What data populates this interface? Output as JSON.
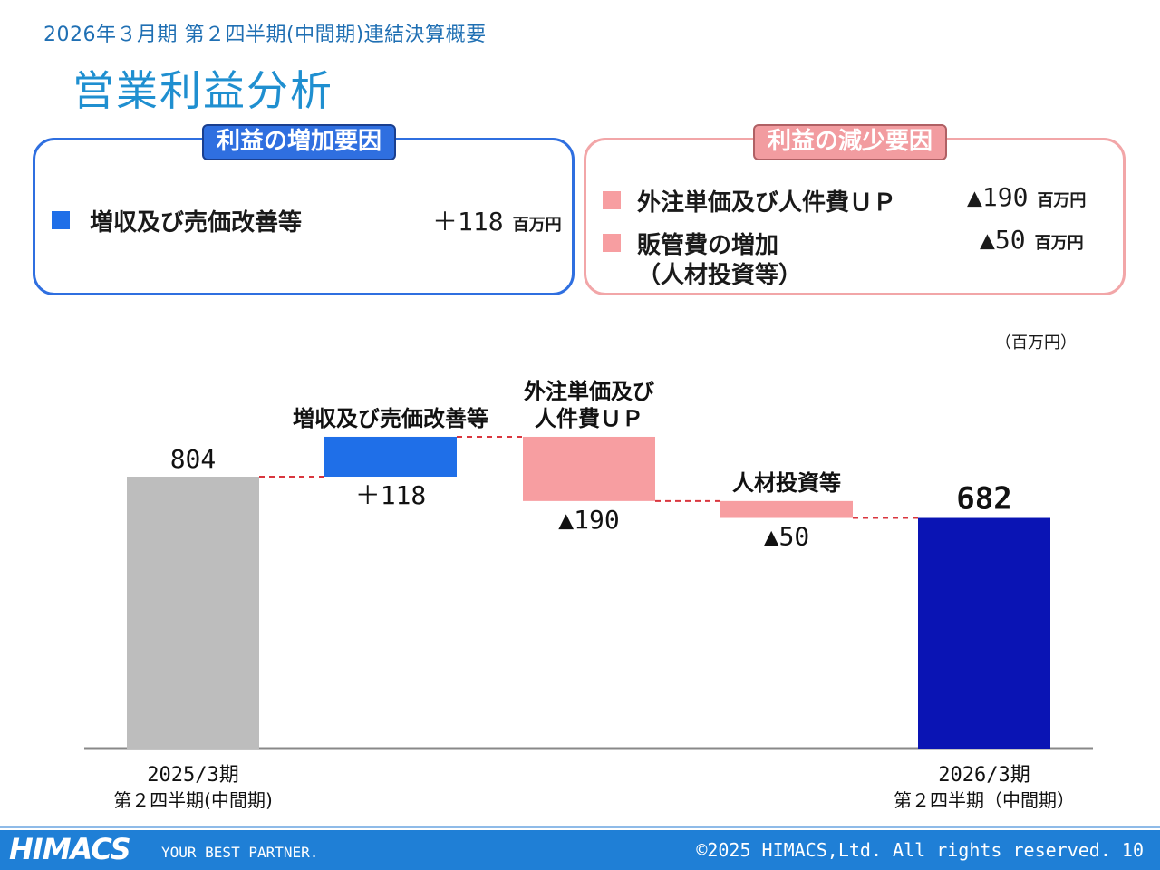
{
  "header": {
    "subtitle": "2026年３月期 第２四半期(中間期)連結決算概要",
    "title": "営業利益分析"
  },
  "increase_box": {
    "tag": "利益の増加要因",
    "items": [
      {
        "label": "増収及び売価改善等",
        "amount": "＋118",
        "unit": "百万円"
      }
    ]
  },
  "decrease_box": {
    "tag": "利益の減少要因",
    "items": [
      {
        "label": "外注単価及び人件費ＵＰ",
        "amount": "▲190",
        "unit": "百万円"
      },
      {
        "label": "販管費の増加",
        "label2": "（人材投資等）",
        "amount": "▲50",
        "unit": "百万円"
      }
    ]
  },
  "chart_unit": "（百万円）",
  "chart_data": {
    "type": "waterfall",
    "ylim": [
      0,
      900
    ],
    "steps": [
      {
        "kind": "total",
        "value": 804,
        "label": "804",
        "top_text": [],
        "cat": "2025/3期",
        "cat_sub": "第２四半期(中間期)",
        "color": "#bdbdbd"
      },
      {
        "kind": "delta",
        "value": 118,
        "label": "＋118",
        "top_text": [
          "増収及び売価改善等"
        ],
        "color": "#1f6fe8"
      },
      {
        "kind": "delta",
        "value": -190,
        "label": "▲190",
        "top_text": [
          "外注単価及び",
          "人件費ＵＰ"
        ],
        "color": "#f79ea1"
      },
      {
        "kind": "delta",
        "value": -50,
        "label": "▲50",
        "top_text": [
          "人材投資等"
        ],
        "color": "#f79ea1"
      },
      {
        "kind": "total",
        "value": 682,
        "label": "682",
        "top_text": [],
        "cat": "2026/3期",
        "cat_sub": "第２四半期（中間期）",
        "color": "#0a14b4"
      }
    ],
    "connector_color": "#d9363e"
  },
  "footer": {
    "logo": "HIMACS",
    "tagline": "YOUR BEST PARTNER.",
    "copyright": "©2025 HIMACS,Ltd. All rights reserved.  10"
  }
}
